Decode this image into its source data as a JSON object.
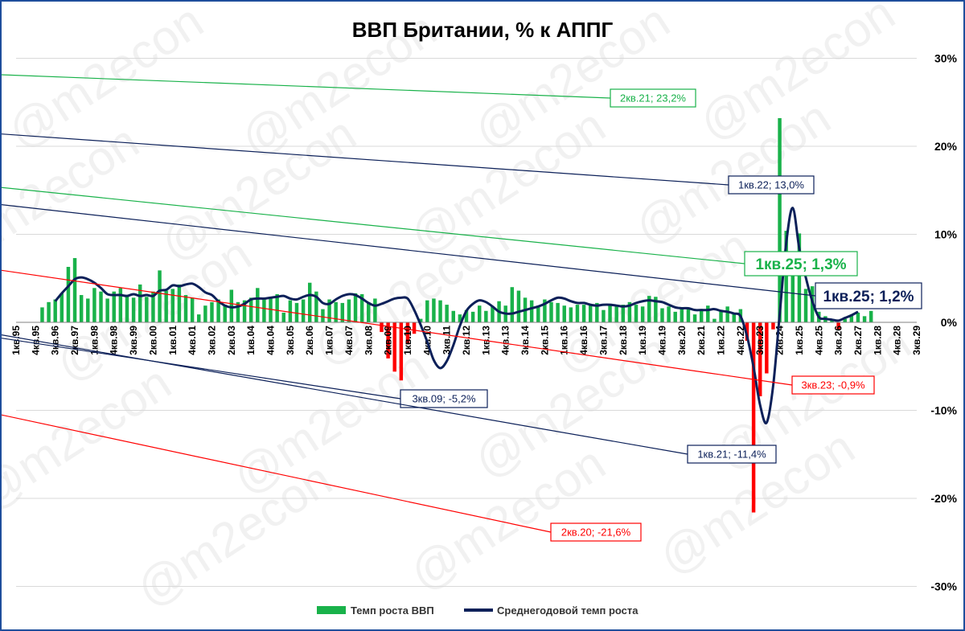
{
  "chart_data": {
    "type": "bar",
    "title": "ВВП Британии, % к АППГ",
    "xlabel": "",
    "ylabel": "",
    "ylim": [
      -30,
      30
    ],
    "y_ticks": [
      30,
      20,
      10,
      0,
      -10,
      -20,
      -30
    ],
    "y_tick_labels": [
      "30%",
      "20%",
      "10%",
      "0%",
      "-10%",
      "-20%",
      "-30%"
    ],
    "x_range": [
      "1кв.95",
      "4кв.29"
    ],
    "x_tick_labels": [
      "1кв.95",
      "4кв.95",
      "3кв.96",
      "2кв.97",
      "1кв.98",
      "4кв.98",
      "3кв.99",
      "2кв.00",
      "1кв.01",
      "4кв.01",
      "3кв.02",
      "2кв.03",
      "1кв.04",
      "4кв.04",
      "3кв.05",
      "2кв.06",
      "1кв.07",
      "4кв.07",
      "3кв.08",
      "2кв.09",
      "1кв.10",
      "4кв.10",
      "3кв.11",
      "2кв.12",
      "1кв.13",
      "4кв.13",
      "3кв.14",
      "2кв.15",
      "1кв.16",
      "4кв.16",
      "3кв.17",
      "2кв.18",
      "1кв.19",
      "4кв.19",
      "3кв.20",
      "2кв.21",
      "1кв.22",
      "4кв.22",
      "3кв.23",
      "2кв.24",
      "1кв.25",
      "4кв.25",
      "3кв.26",
      "2кв.27",
      "1кв.28",
      "4кв.28",
      "3кв.29"
    ],
    "grid": true,
    "legend_position": "bottom",
    "colors": {
      "positive_bar": "#19b24a",
      "negative_bar": "#ff0000",
      "line": "#0c2059",
      "watermark": "#e4e4e4"
    },
    "series": [
      {
        "name": "Темп роста ВВП",
        "type": "bar",
        "start": "1кв.96",
        "values": [
          1.7,
          2.3,
          2.6,
          3.3,
          6.3,
          7.3,
          3.1,
          2.7,
          3.9,
          3.5,
          2.7,
          3.5,
          3.9,
          3.1,
          2.8,
          4.3,
          2.9,
          3.5,
          5.9,
          3.6,
          3.8,
          4.3,
          3.1,
          2.8,
          0.9,
          1.9,
          2.3,
          2.6,
          2.0,
          3.7,
          2.3,
          2.5,
          2.8,
          3.9,
          2.6,
          2.9,
          3.2,
          1.1,
          2.5,
          2.2,
          2.6,
          4.5,
          3.5,
          1.5,
          2.6,
          2.3,
          2.2,
          2.6,
          3.3,
          3.2,
          2.3,
          2.7,
          -1.1,
          -4.1,
          -5.6,
          -6.6,
          -2.5,
          -1.3,
          0.4,
          2.5,
          2.7,
          2.5,
          2.0,
          1.3,
          0.9,
          1.4,
          1.2,
          1.9,
          1.3,
          1.8,
          2.4,
          1.9,
          4.0,
          3.6,
          2.8,
          2.5,
          1.9,
          2.6,
          2.3,
          2.2,
          1.9,
          1.7,
          2.0,
          2.0,
          2.1,
          2.2,
          1.4,
          2.0,
          1.8,
          2.0,
          2.3,
          2.0,
          1.8,
          3.0,
          2.9,
          1.6,
          1.8,
          1.2,
          1.5,
          1.5,
          0.9,
          1.5,
          1.9,
          0.4,
          1.4,
          1.8,
          1.0,
          1.5,
          -2.1,
          -21.6,
          -8.4,
          -5.8,
          -0.8,
          23.2,
          10.4,
          7.0,
          10.1,
          3.8,
          4.1,
          1.2,
          0.7,
          0.3,
          -0.9,
          0.4,
          0.9,
          1.1,
          0.7,
          1.3
        ],
        "last_label": "1кв.25; 1,3%"
      },
      {
        "name": "Среднегодовой темп роста",
        "type": "line",
        "start": "3кв.96",
        "values": [
          2.4,
          3.3,
          4.1,
          4.9,
          5.1,
          4.9,
          4.5,
          3.9,
          3.2,
          3.1,
          3.1,
          3.0,
          3.2,
          3.0,
          3.1,
          3.0,
          3.6,
          3.7,
          4.2,
          4.1,
          4.3,
          4.4,
          4.0,
          3.4,
          3.1,
          2.4,
          1.9,
          1.7,
          1.8,
          2.1,
          2.6,
          2.7,
          2.7,
          2.8,
          2.9,
          3.0,
          2.7,
          2.6,
          2.9,
          3.1,
          2.9,
          2.2,
          2.1,
          2.6,
          3.0,
          3.2,
          3.1,
          2.7,
          2.2,
          1.9,
          2.1,
          2.4,
          2.7,
          2.8,
          2.7,
          1.4,
          -0.3,
          -2.2,
          -4.3,
          -5.2,
          -4.4,
          -2.6,
          -0.4,
          1.3,
          2.1,
          2.5,
          2.3,
          1.8,
          1.2,
          1.0,
          1.0,
          1.2,
          1.4,
          1.6,
          1.8,
          2.1,
          2.5,
          2.8,
          2.7,
          2.4,
          2.2,
          2.2,
          2.0,
          1.9,
          2.0,
          2.0,
          1.9,
          1.8,
          1.9,
          2.2,
          2.4,
          2.5,
          2.4,
          2.3,
          2.0,
          1.7,
          1.6,
          1.6,
          1.4,
          1.4,
          1.4,
          1.5,
          1.3,
          1.2,
          1.0,
          0.7,
          -1.6,
          -5.1,
          -9.4,
          -11.4,
          -7.2,
          0.9,
          9.0,
          13.0,
          8.4,
          5.1,
          2.4,
          0.6,
          0.4,
          0.3,
          0.2,
          0.5,
          0.8,
          1.2
        ],
        "last_label": "1кв.25; 1,2%"
      }
    ],
    "annotations": [
      {
        "text": "2кв.21; 23,2%",
        "color": "#19b24a"
      },
      {
        "text": "1кв.22; 13,0%",
        "color": "#0c2059"
      },
      {
        "text": "1кв.25; 1,3%",
        "color": "#19b24a"
      },
      {
        "text": "1кв.25; 1,2%",
        "color": "#0c2059"
      },
      {
        "text": "3кв.09; -5,2%",
        "color": "#0c2059"
      },
      {
        "text": "1кв.21; -11,4%",
        "color": "#0c2059"
      },
      {
        "text": "3кв.23; -0,9%",
        "color": "#ff0000"
      },
      {
        "text": "2кв.20; -21,6%",
        "color": "#ff0000"
      }
    ],
    "watermark": "@m2econ"
  }
}
